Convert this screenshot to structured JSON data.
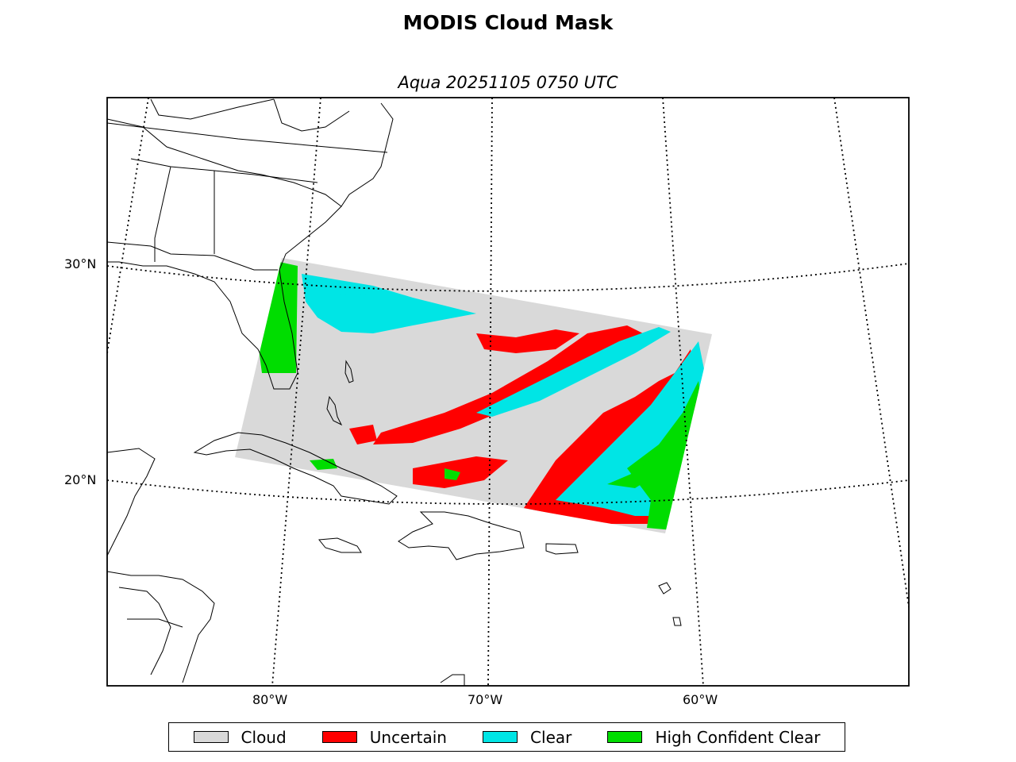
{
  "title": "MODIS Cloud Mask",
  "subtitle": "Aqua 20251105 0750 UTC",
  "axes": {
    "lat_labels": [
      "30°N",
      "20°N"
    ],
    "lon_labels": [
      "80°W",
      "70°W",
      "60°W"
    ]
  },
  "legend": [
    {
      "label": "Cloud",
      "color": "#d9d9d9"
    },
    {
      "label": "Uncertain",
      "color": "#ff0000"
    },
    {
      "label": "Clear",
      "color": "#00e5e5"
    },
    {
      "label": "High Confident Clear",
      "color": "#00dd00"
    }
  ],
  "colors": {
    "cloud": "#d9d9d9",
    "uncertain": "#ff0000",
    "clear": "#00e5e5",
    "high_confident_clear": "#00dd00",
    "coastline": "#000000"
  }
}
